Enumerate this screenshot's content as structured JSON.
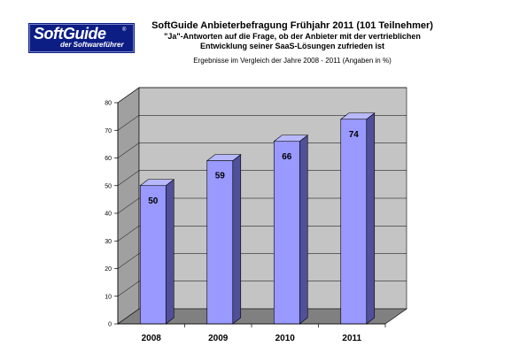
{
  "logo": {
    "name": "SoftGuide",
    "registered": "®",
    "tagline": "der Softwareführer"
  },
  "header": {
    "title": "SoftGuide Anbieterbefragung Frühjahr 2011 (101 Teilnehmer)",
    "subtitle_line1": "\"Ja\"-Antworten auf die Frage, ob der Anbieter mit der vertrieblichen",
    "subtitle_line2": "Entwicklung seiner SaaS-Lösungen zufrieden ist",
    "note": "Ergebnisse im Vergleich der Jahre 2008 - 2011  (Angaben in %)"
  },
  "colors": {
    "bar_front": "#9999ff",
    "bar_side": "#50509a",
    "bar_top": "#b8b8ff",
    "wall_back": "#c4c4c4",
    "wall_left": "#a0a0a0",
    "floor": "#808080"
  },
  "chart_data": {
    "type": "bar",
    "style": "3d-column",
    "categories": [
      "2008",
      "2009",
      "2010",
      "2011"
    ],
    "values": [
      50,
      59,
      66,
      74
    ],
    "data_labels": [
      "50",
      "59",
      "66",
      "74"
    ],
    "ylim": [
      0,
      80
    ],
    "yticks": [
      0,
      10,
      20,
      30,
      40,
      50,
      60,
      70,
      80
    ],
    "grid": false,
    "legend": false
  }
}
